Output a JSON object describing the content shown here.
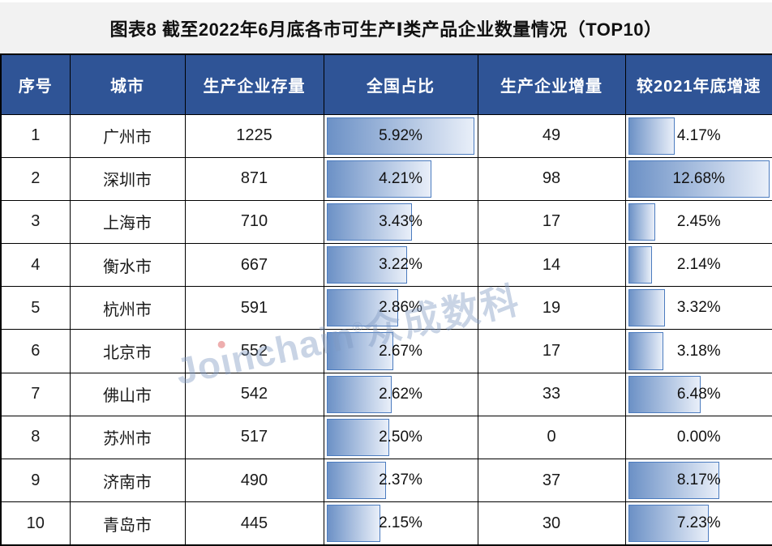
{
  "title": "图表8 截至2022年6月底各市可生产Ⅰ类产品企业数量情况（TOP10）",
  "colors": {
    "header_bg": "#2F5496",
    "grid": "#000000",
    "bar_border": "#4C7CBF",
    "bar_gradient_start": "#6C91C6",
    "bar_gradient_end": "#E9EFF9",
    "title_band_bg": "#F2F2F2"
  },
  "watermark": {
    "text": "Joinchain®众成数科",
    "part1": "Jo",
    "dotless_i": "ı",
    "part2": "nchain",
    "reg": "®",
    "cjk": "众成数科"
  },
  "chart_data": {
    "type": "table",
    "title": "图表8 截至2022年6月底各市可生产Ⅰ类产品企业数量情况（TOP10）",
    "columns": [
      "序号",
      "城市",
      "生产企业存量",
      "全国占比",
      "生产企业增量",
      "较2021年底增速"
    ],
    "share_axis_max": 5.92,
    "growth_axis_max": 12.68,
    "bar_style": "gradient data bar, left-aligned, length proportional to value",
    "rows": [
      {
        "rank": "1",
        "city": "广州市",
        "stock": "1225",
        "share": "5.92%",
        "share_val": 5.92,
        "increment": "49",
        "growth": "4.17%",
        "growth_val": 4.17
      },
      {
        "rank": "2",
        "city": "深圳市",
        "stock": "871",
        "share": "4.21%",
        "share_val": 4.21,
        "increment": "98",
        "growth": "12.68%",
        "growth_val": 12.68
      },
      {
        "rank": "3",
        "city": "上海市",
        "stock": "710",
        "share": "3.43%",
        "share_val": 3.43,
        "increment": "17",
        "growth": "2.45%",
        "growth_val": 2.45
      },
      {
        "rank": "4",
        "city": "衡水市",
        "stock": "667",
        "share": "3.22%",
        "share_val": 3.22,
        "increment": "14",
        "growth": "2.14%",
        "growth_val": 2.14
      },
      {
        "rank": "5",
        "city": "杭州市",
        "stock": "591",
        "share": "2.86%",
        "share_val": 2.86,
        "increment": "19",
        "growth": "3.32%",
        "growth_val": 3.32
      },
      {
        "rank": "6",
        "city": "北京市",
        "stock": "552",
        "share": "2.67%",
        "share_val": 2.67,
        "increment": "17",
        "growth": "3.18%",
        "growth_val": 3.18
      },
      {
        "rank": "7",
        "city": "佛山市",
        "stock": "542",
        "share": "2.62%",
        "share_val": 2.62,
        "increment": "33",
        "growth": "6.48%",
        "growth_val": 6.48
      },
      {
        "rank": "8",
        "city": "苏州市",
        "stock": "517",
        "share": "2.50%",
        "share_val": 2.5,
        "increment": "0",
        "growth": "0.00%",
        "growth_val": 0.0
      },
      {
        "rank": "9",
        "city": "济南市",
        "stock": "490",
        "share": "2.37%",
        "share_val": 2.37,
        "increment": "37",
        "growth": "8.17%",
        "growth_val": 8.17
      },
      {
        "rank": "10",
        "city": "青岛市",
        "stock": "445",
        "share": "2.15%",
        "share_val": 2.15,
        "increment": "30",
        "growth": "7.23%",
        "growth_val": 7.23
      }
    ]
  }
}
